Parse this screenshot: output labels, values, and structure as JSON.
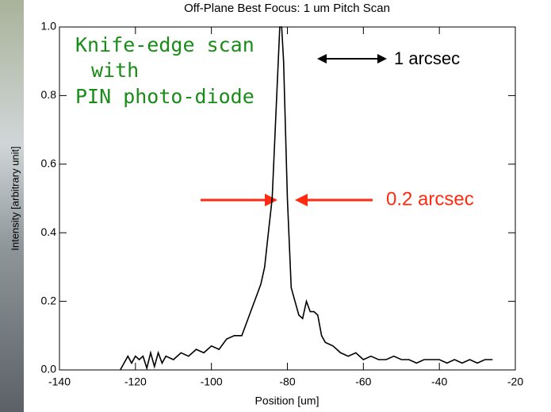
{
  "chart_data": {
    "type": "line",
    "title": "Off-Plane Best Focus: 1 um Pitch Scan",
    "x_label": "Position [um]",
    "y_label": "Intensity [arbitrary unit]",
    "xlim": [
      -140,
      -20
    ],
    "xticks": [
      -140,
      -120,
      -100,
      -80,
      -60,
      -40,
      -20
    ],
    "ylim": [
      0,
      1
    ],
    "yticks": [
      {
        "value": 0,
        "label": "0.0"
      },
      0.2,
      0.4,
      0.6,
      0.8,
      {
        "value": 1,
        "label": "1.0"
      }
    ],
    "series": [
      {
        "color": "#000000",
        "x": [
          -124,
          -122,
          -121,
          -120,
          -119,
          -118,
          -117,
          -116,
          -115,
          -114,
          -113,
          -112,
          -110,
          -108,
          -106,
          -104,
          -102,
          -100,
          -98,
          -96,
          -94,
          -92,
          -90,
          -88,
          -87,
          -86,
          -85,
          -84,
          -83,
          -82,
          -81.5,
          -81,
          -80.5,
          -80,
          -79,
          -78,
          -77,
          -76,
          -75,
          -74,
          -73,
          -72,
          -71,
          -70,
          -68,
          -66,
          -64,
          -62,
          -60,
          -58,
          -56,
          -54,
          -52,
          -50,
          -48,
          -46,
          -44,
          -42,
          -40,
          -38,
          -36,
          -34,
          -32,
          -30,
          -28,
          -26
        ],
        "values": [
          0,
          0.04,
          0.02,
          0.04,
          0.03,
          0.04,
          0.005,
          0.05,
          0.01,
          0.05,
          0.02,
          0.04,
          0.03,
          0.05,
          0.04,
          0.06,
          0.05,
          0.07,
          0.06,
          0.09,
          0.1,
          0.1,
          0.16,
          0.22,
          0.25,
          0.3,
          0.4,
          0.5,
          0.75,
          1.0,
          1.0,
          0.9,
          0.7,
          0.5,
          0.24,
          0.2,
          0.16,
          0.15,
          0.2,
          0.17,
          0.17,
          0.16,
          0.1,
          0.08,
          0.07,
          0.05,
          0.04,
          0.05,
          0.03,
          0.04,
          0.03,
          0.03,
          0.04,
          0.03,
          0.03,
          0.02,
          0.03,
          0.03,
          0.03,
          0.02,
          0.03,
          0.02,
          0.03,
          0.02,
          0.03,
          0.03
        ]
      }
    ],
    "annotations": [
      {
        "text": "Knife-edge scan",
        "color": "#1a8c1a"
      },
      {
        "text": "with",
        "color": "#1a8c1a"
      },
      {
        "text": "PIN photo-diode",
        "color": "#1a8c1a"
      },
      {
        "text": "1 arcsec",
        "color": "#000000"
      },
      {
        "text": "0.2 arcsec",
        "color": "#ff2a10"
      }
    ]
  }
}
